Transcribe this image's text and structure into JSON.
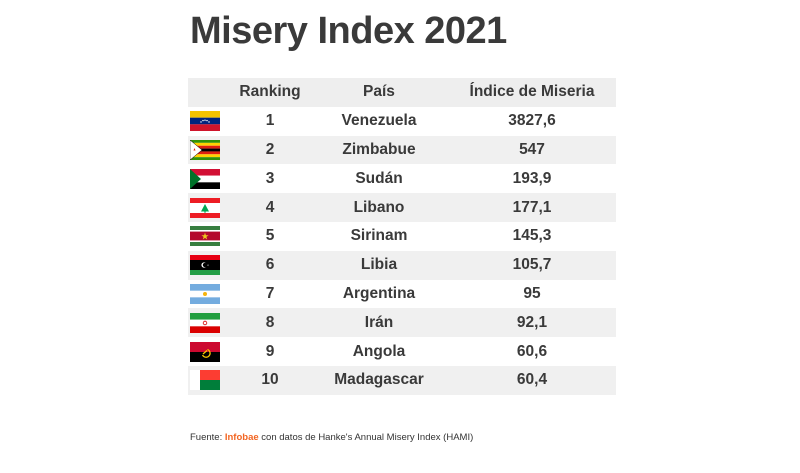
{
  "title": "Misery Index 2021",
  "table": {
    "headers": {
      "ranking": "Ranking",
      "pais": "País",
      "indice": "Índice de Miseria"
    },
    "rows": [
      {
        "ranking": "1",
        "pais": "Venezuela",
        "indice": "3827,6",
        "flag": "venezuela-flag"
      },
      {
        "ranking": "2",
        "pais": "Zimbabue",
        "indice": "547",
        "flag": "zimbabwe-flag"
      },
      {
        "ranking": "3",
        "pais": "Sudán",
        "indice": "193,9",
        "flag": "sudan-flag"
      },
      {
        "ranking": "4",
        "pais": "Libano",
        "indice": "177,1",
        "flag": "lebanon-flag"
      },
      {
        "ranking": "5",
        "pais": "Sirinam",
        "indice": "145,3",
        "flag": "suriname-flag"
      },
      {
        "ranking": "6",
        "pais": "Libia",
        "indice": "105,7",
        "flag": "libya-flag"
      },
      {
        "ranking": "7",
        "pais": "Argentina",
        "indice": "95",
        "flag": "argentina-flag"
      },
      {
        "ranking": "8",
        "pais": "Irán",
        "indice": "92,1",
        "flag": "iran-flag"
      },
      {
        "ranking": "9",
        "pais": "Angola",
        "indice": "60,6",
        "flag": "angola-flag"
      },
      {
        "ranking": "10",
        "pais": "Madagascar",
        "indice": "60,4",
        "flag": "madagascar-flag"
      }
    ]
  },
  "source": {
    "prefix": "Fuente: ",
    "brand": "Infobae",
    "suffix": " con datos de Hanke's Annual Misery Index (HAMI)"
  },
  "colors": {
    "brand": "#f26522",
    "row_alt": "#f0f0f0",
    "header_bg": "#eeeeee",
    "text": "#3a3a3a"
  },
  "chart_data": {
    "type": "table",
    "title": "Misery Index 2021",
    "columns": [
      "Ranking",
      "País",
      "Índice de Miseria"
    ],
    "rows": [
      [
        1,
        "Venezuela",
        3827.6
      ],
      [
        2,
        "Zimbabue",
        547
      ],
      [
        3,
        "Sudán",
        193.9
      ],
      [
        4,
        "Libano",
        177.1
      ],
      [
        5,
        "Sirinam",
        145.3
      ],
      [
        6,
        "Libia",
        105.7
      ],
      [
        7,
        "Argentina",
        95
      ],
      [
        8,
        "Irán",
        92.1
      ],
      [
        9,
        "Angola",
        60.6
      ],
      [
        10,
        "Madagascar",
        60.4
      ]
    ]
  }
}
